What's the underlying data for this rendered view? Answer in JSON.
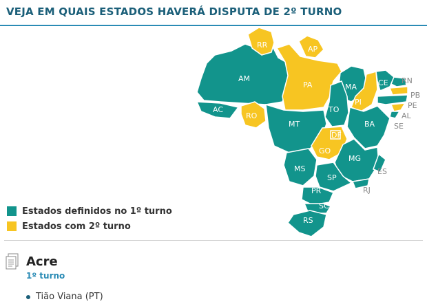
{
  "header": {
    "title": "VEJA EM QUAIS ESTADOS HAVERÁ DISPUTA DE 2º TURNO"
  },
  "colors": {
    "first_round": "#12948c",
    "second_round": "#f7c522",
    "accent": "#2a8bb5"
  },
  "map": {
    "states": [
      {
        "abbr": "RR",
        "status": "second_round"
      },
      {
        "abbr": "AP",
        "status": "second_round"
      },
      {
        "abbr": "AM",
        "status": "first_round"
      },
      {
        "abbr": "PA",
        "status": "second_round"
      },
      {
        "abbr": "MA",
        "status": "first_round"
      },
      {
        "abbr": "CE",
        "status": "first_round"
      },
      {
        "abbr": "RN",
        "status": "first_round"
      },
      {
        "abbr": "PB",
        "status": "second_round"
      },
      {
        "abbr": "PE",
        "status": "first_round"
      },
      {
        "abbr": "PI",
        "status": "second_round"
      },
      {
        "abbr": "AL",
        "status": "second_round"
      },
      {
        "abbr": "SE",
        "status": "first_round"
      },
      {
        "abbr": "AC",
        "status": "first_round"
      },
      {
        "abbr": "RO",
        "status": "second_round"
      },
      {
        "abbr": "TO",
        "status": "first_round"
      },
      {
        "abbr": "MT",
        "status": "first_round"
      },
      {
        "abbr": "BA",
        "status": "first_round"
      },
      {
        "abbr": "DF",
        "status": "second_round"
      },
      {
        "abbr": "GO",
        "status": "second_round"
      },
      {
        "abbr": "MG",
        "status": "first_round"
      },
      {
        "abbr": "ES",
        "status": "first_round"
      },
      {
        "abbr": "MS",
        "status": "first_round"
      },
      {
        "abbr": "SP",
        "status": "first_round"
      },
      {
        "abbr": "RJ",
        "status": "first_round"
      },
      {
        "abbr": "PR",
        "status": "first_round"
      },
      {
        "abbr": "SC",
        "status": "first_round"
      },
      {
        "abbr": "RS",
        "status": "first_round"
      }
    ]
  },
  "legend": {
    "first_round_label": "Estados definidos no 1º turno",
    "second_round_label": "Estados com 2º turno"
  },
  "state_panel": {
    "icon": "document-icon",
    "state_name": "Acre",
    "round_label": "1º turno",
    "candidate": "Tião Viana (PT)"
  }
}
